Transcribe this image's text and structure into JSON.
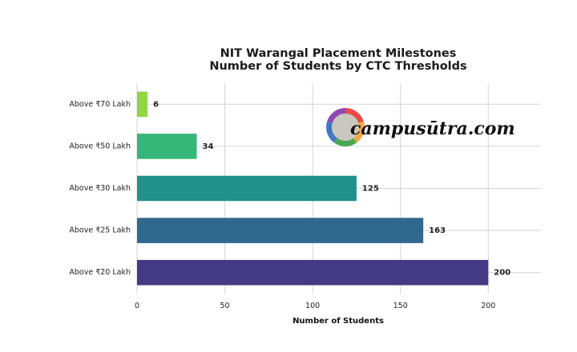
{
  "chart_data": {
    "type": "bar",
    "orientation": "horizontal",
    "title": "NIT Warangal Placement Milestones",
    "subtitle": "Number of Students by CTC Thresholds",
    "xlabel": "Number of Students",
    "ylabel": "",
    "xlim": [
      0,
      230
    ],
    "x_ticks": [
      0,
      50,
      100,
      150,
      200
    ],
    "grid": true,
    "categories": [
      "Above ₹20 Lakh",
      "Above ₹25 Lakh",
      "Above ₹30 Lakh",
      "Above ₹50 Lakh",
      "Above ₹70 Lakh"
    ],
    "values": [
      200,
      163,
      125,
      34,
      6
    ],
    "colors": [
      "#443983",
      "#31688e",
      "#21918c",
      "#35b779",
      "#90d743"
    ]
  },
  "watermark": {
    "text": "campusūtra.com",
    "ring_colors": [
      "#e8413c",
      "#f2a33a",
      "#3fa34d",
      "#3a6fc4",
      "#8a3fb0"
    ]
  }
}
